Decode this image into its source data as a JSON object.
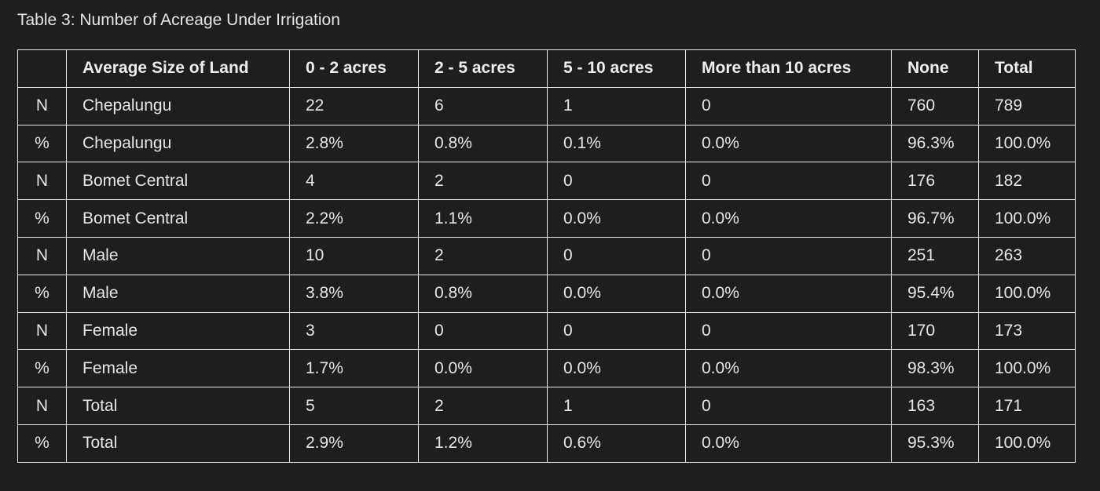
{
  "caption": "Table 3: Number of Acreage Under Irrigation",
  "table": {
    "headers": [
      "",
      "Average Size of Land",
      "0 - 2 acres",
      "2 - 5 acres",
      "5 - 10 acres",
      "More than 10 acres",
      "None",
      "Total"
    ],
    "rows": [
      [
        "N",
        "Chepalungu",
        "22",
        "6",
        "1",
        "0",
        "760",
        "789"
      ],
      [
        "%",
        "Chepalungu",
        "2.8%",
        "0.8%",
        "0.1%",
        "0.0%",
        "96.3%",
        "100.0%"
      ],
      [
        "N",
        "Bomet Central",
        "4",
        "2",
        "0",
        "0",
        "176",
        "182"
      ],
      [
        "%",
        "Bomet Central",
        "2.2%",
        "1.1%",
        "0.0%",
        "0.0%",
        "96.7%",
        "100.0%"
      ],
      [
        "N",
        "Male",
        "10",
        "2",
        "0",
        "0",
        "251",
        "263"
      ],
      [
        "%",
        "Male",
        "3.8%",
        "0.8%",
        "0.0%",
        "0.0%",
        "95.4%",
        "100.0%"
      ],
      [
        "N",
        "Female",
        "3",
        "0",
        "0",
        "0",
        "170",
        "173"
      ],
      [
        "%",
        "Female",
        "1.7%",
        "0.0%",
        "0.0%",
        "0.0%",
        "98.3%",
        "100.0%"
      ],
      [
        "N",
        "Total",
        "5",
        "2",
        "1",
        "0",
        "163",
        "171"
      ],
      [
        "%",
        "Total",
        "2.9%",
        "1.2%",
        "0.6%",
        "0.0%",
        "95.3%",
        "100.0%"
      ]
    ]
  }
}
